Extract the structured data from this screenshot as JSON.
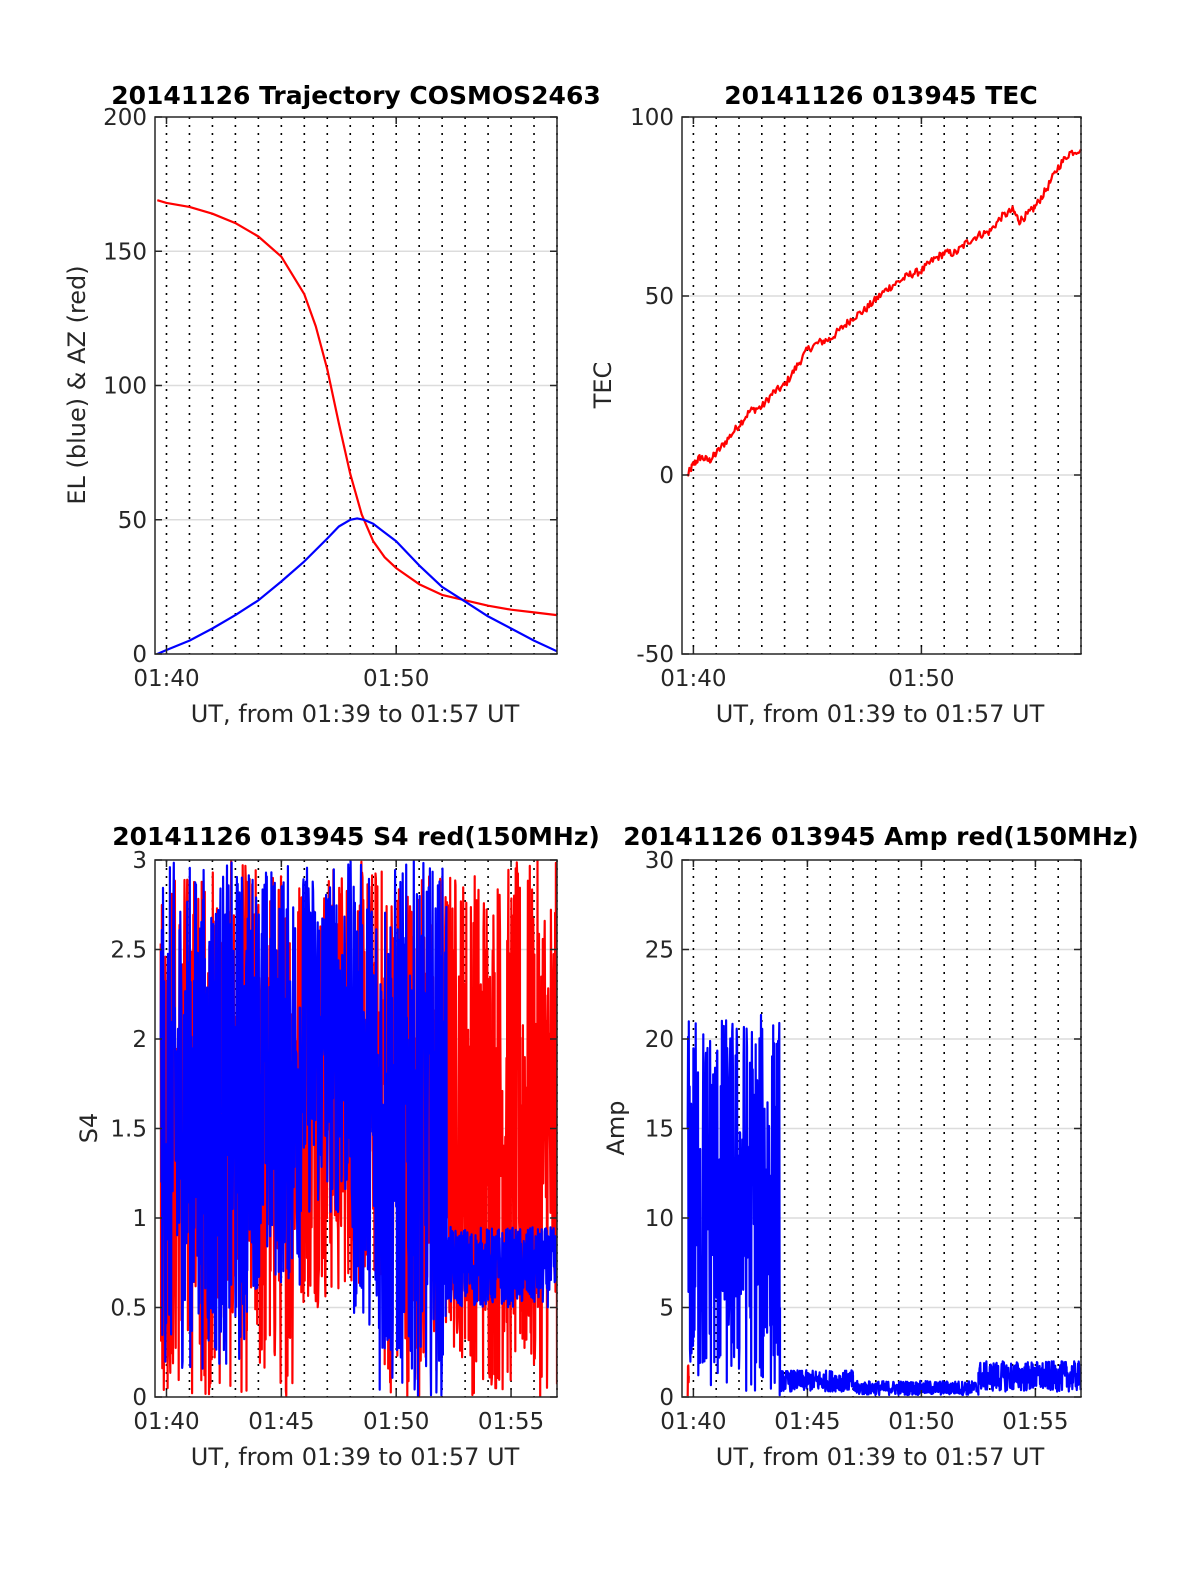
{
  "colors": {
    "red": "#ff0000",
    "blue": "#0000ff",
    "grid": "#dcdcdc",
    "minor": "#000000",
    "axis": "#262626"
  },
  "chart_data": [
    {
      "type": "line",
      "title": "20141126 Trajectory COSMOS2463",
      "xlabel": "UT, from 01:39 to 01:57 UT",
      "ylabel": "EL (blue) & AZ (red)",
      "xlim": [
        99.5,
        117
      ],
      "ylim": [
        0,
        200
      ],
      "yticks": [
        "0",
        "50",
        "100",
        "150",
        "200"
      ],
      "xticks": [
        {
          "v": 100,
          "label": "01:40"
        },
        {
          "v": 110,
          "label": "01:50"
        }
      ],
      "grid": true,
      "series": [
        {
          "color": "red",
          "x": [
            99.6,
            100,
            101,
            102,
            103,
            104,
            105,
            106,
            106.5,
            107,
            107.5,
            108,
            108.5,
            109,
            109.5,
            110,
            111,
            112,
            113,
            114,
            115,
            116,
            117
          ],
          "y": [
            169,
            168,
            166.5,
            164,
            160.5,
            155.5,
            148,
            134,
            122,
            106,
            86,
            67,
            52,
            42,
            36,
            32,
            26,
            22,
            20,
            18,
            16.5,
            15.5,
            14.5
          ]
        },
        {
          "color": "blue",
          "x": [
            99.6,
            100,
            101,
            102,
            103,
            104,
            105,
            106,
            107,
            107.5,
            108,
            108.3,
            108.6,
            109,
            110,
            111,
            112,
            113,
            114,
            115,
            116,
            117
          ],
          "y": [
            0,
            1.5,
            5,
            9.5,
            14.5,
            20,
            27,
            34.5,
            43,
            47.5,
            50,
            50.5,
            50,
            48.5,
            42,
            33,
            25,
            19.5,
            14,
            9.5,
            5,
            1
          ]
        }
      ]
    },
    {
      "type": "line",
      "title": "20141126 013945 TEC",
      "xlabel": "UT, from 01:39 to 01:57 UT",
      "ylabel": "TEC",
      "xlim": [
        99.5,
        117
      ],
      "ylim": [
        -50,
        100
      ],
      "yticks": [
        "-50",
        "0",
        "50",
        "100"
      ],
      "xticks": [
        {
          "v": 100,
          "label": "01:40"
        },
        {
          "v": 110,
          "label": "01:50"
        }
      ],
      "grid": true,
      "series": [
        {
          "color": "red",
          "x": [
            99.75,
            100,
            100.3,
            100.7,
            101,
            101.5,
            102,
            102.5,
            103,
            103.5,
            104,
            104.5,
            105,
            105.5,
            106,
            106.5,
            107,
            107.5,
            108,
            108.5,
            109,
            109.5,
            110,
            110.5,
            111,
            111.5,
            112,
            112.5,
            113,
            113.5,
            114,
            114.3,
            114.7,
            115,
            115.5,
            116,
            116.5,
            117
          ],
          "y": [
            0,
            3,
            5,
            4,
            6,
            10,
            14,
            18,
            19,
            23,
            25,
            30,
            35,
            37,
            38,
            41,
            44,
            46,
            49,
            52,
            54,
            56,
            57,
            60,
            62,
            62,
            65,
            67,
            68,
            72,
            74,
            71,
            73,
            75,
            80,
            86,
            90,
            91
          ]
        }
      ]
    },
    {
      "type": "line",
      "title": "20141126 013945 S4 red(150MHz)",
      "xlabel": "UT, from 01:39 to 01:57 UT",
      "ylabel": "S4",
      "xlim": [
        99.5,
        117
      ],
      "ylim": [
        0,
        3
      ],
      "yticks": [
        "0",
        "0.5",
        "1",
        "1.5",
        "2",
        "2.5",
        "3"
      ],
      "xticks": [
        {
          "v": 100,
          "label": "01:40"
        },
        {
          "v": 105,
          "label": "01:45"
        },
        {
          "v": 110,
          "label": "01:50"
        },
        {
          "v": 115,
          "label": "01:55"
        }
      ],
      "grid": true,
      "series": [
        {
          "color": "red",
          "noise": [
            {
              "x0": 99.75,
              "x1": 101,
              "lo": 0.0,
              "hi": 3.0
            },
            {
              "x0": 101,
              "x1": 103.5,
              "lo": 0.0,
              "hi": 3.0
            },
            {
              "x0": 103.5,
              "x1": 105.5,
              "lo": 0.0,
              "hi": 3.0
            },
            {
              "x0": 105.5,
              "x1": 107.5,
              "lo": 0.5,
              "hi": 3.0
            },
            {
              "x0": 107.5,
              "x1": 109.5,
              "lo": 0.6,
              "hi": 3.0
            },
            {
              "x0": 109.5,
              "x1": 111.8,
              "lo": 0.0,
              "hi": 3.0
            },
            {
              "x0": 111.8,
              "x1": 113,
              "lo": 0.2,
              "hi": 3.0
            },
            {
              "x0": 113,
              "x1": 115.5,
              "lo": 0.0,
              "hi": 3.0
            },
            {
              "x0": 115.5,
              "x1": 117,
              "lo": 0.0,
              "hi": 3.0
            }
          ]
        },
        {
          "color": "blue",
          "noise": [
            {
              "x0": 99.75,
              "x1": 103.5,
              "lo": 0.15,
              "hi": 3.0
            },
            {
              "x0": 103.5,
              "x1": 105.8,
              "lo": 0.6,
              "hi": 3.0
            },
            {
              "x0": 105.8,
              "x1": 108,
              "lo": 1.0,
              "hi": 3.0
            },
            {
              "x0": 108,
              "x1": 109,
              "lo": 0.4,
              "hi": 3.0
            },
            {
              "x0": 109,
              "x1": 111,
              "lo": 0.0,
              "hi": 3.0
            },
            {
              "x0": 111,
              "x1": 112.2,
              "lo": 0.0,
              "hi": 3.0
            },
            {
              "x0": 112.2,
              "x1": 117,
              "lo": 0.5,
              "hi": 0.95
            }
          ]
        }
      ]
    },
    {
      "type": "line",
      "title": "20141126 013945 Amp red(150MHz)",
      "xlabel": "UT, from 01:39 to 01:57 UT",
      "ylabel": "Amp",
      "xlim": [
        99.5,
        117
      ],
      "ylim": [
        0,
        30
      ],
      "yticks": [
        "0",
        "5",
        "10",
        "15",
        "20",
        "25",
        "30"
      ],
      "xticks": [
        {
          "v": 100,
          "label": "01:40"
        },
        {
          "v": 105,
          "label": "01:45"
        },
        {
          "v": 110,
          "label": "01:50"
        },
        {
          "v": 115,
          "label": "01:55"
        }
      ],
      "grid": true,
      "series": [
        {
          "color": "red",
          "noise": [
            {
              "x0": 99.75,
              "x1": 99.8,
              "lo": 0,
              "hi": 2
            }
          ]
        },
        {
          "color": "blue",
          "noise": [
            {
              "x0": 99.75,
              "x1": 103.8,
              "lo": 0.0,
              "hi": 21.5
            },
            {
              "x0": 103.8,
              "x1": 107,
              "lo": 0.3,
              "hi": 1.5
            },
            {
              "x0": 107,
              "x1": 112.5,
              "lo": 0.1,
              "hi": 0.9
            },
            {
              "x0": 112.5,
              "x1": 117,
              "lo": 0.3,
              "hi": 2.0
            }
          ]
        }
      ]
    }
  ]
}
